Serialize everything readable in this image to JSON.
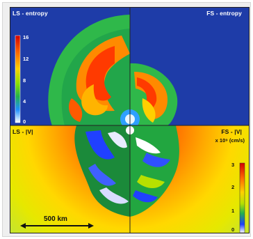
{
  "panels": {
    "top_left_title": "LS - entropy",
    "top_right_title": "FS - entropy",
    "bottom_left_title": "LS - |V|",
    "bottom_right_title": "FS - |V|",
    "velocity_units": "x 10⁹ (cm/s)"
  },
  "entropy_colorbar": {
    "ticks": [
      "16",
      "12",
      "8",
      "4",
      "0"
    ],
    "colors": [
      "#d40000",
      "#ff6a00",
      "#ffd000",
      "#8be000",
      "#22b14c",
      "#1e8fff",
      "#ffffff"
    ]
  },
  "velocity_colorbar": {
    "ticks": [
      "3",
      "2",
      "1",
      "0"
    ],
    "colors": [
      "#d40000",
      "#ff6a00",
      "#ffd000",
      "#b6e000",
      "#22b14c",
      "#1e3fff",
      "#ffffff"
    ]
  },
  "scale_bar": {
    "label": "500 km"
  }
}
